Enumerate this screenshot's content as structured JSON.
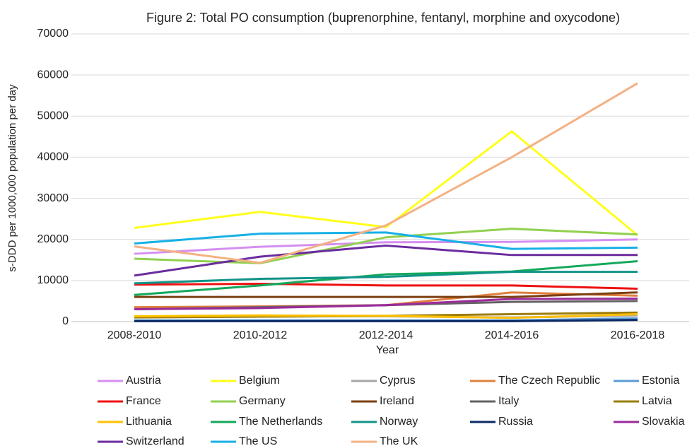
{
  "chart_data": {
    "type": "line",
    "title": "Figure 2: Total PO consumption (buprenorphine, fentanyl, morphine and oxycodone)",
    "x_label": "Year",
    "y_label": "s-DDD per 1000,000 population per day",
    "categories": [
      "2008-2010",
      "2010-2012",
      "2012-2014",
      "2014-2016",
      "2016-2018"
    ],
    "ylim": [
      0,
      70000
    ],
    "yticks": [
      0,
      10000,
      20000,
      30000,
      40000,
      50000,
      60000,
      70000
    ],
    "grid": true,
    "legend": "bottom",
    "series": [
      {
        "name": "Austria",
        "color": "#d58ff0",
        "values": [
          16500,
          18200,
          19300,
          19400,
          20000
        ]
      },
      {
        "name": "Belgium",
        "color": "#ffff1a",
        "values": [
          22800,
          26700,
          23000,
          46300,
          21000
        ]
      },
      {
        "name": "Cyprus",
        "color": "#a6a6a6",
        "values": [
          1200,
          1300,
          1300,
          1000,
          1500
        ]
      },
      {
        "name": "The Czech Republic",
        "color": "#e0813e",
        "values": [
          3500,
          3700,
          4000,
          7100,
          6300
        ]
      },
      {
        "name": "Estonia",
        "color": "#5b9bd5",
        "values": [
          300,
          300,
          300,
          300,
          800
        ]
      },
      {
        "name": "France",
        "color": "#ee1111",
        "values": [
          9000,
          9200,
          8800,
          8800,
          8000
        ]
      },
      {
        "name": "Germany",
        "color": "#92d050",
        "values": [
          15300,
          14200,
          20500,
          22600,
          21200
        ]
      },
      {
        "name": "Ireland",
        "color": "#7b3f12",
        "values": [
          6000,
          6000,
          6000,
          6000,
          7100
        ]
      },
      {
        "name": "Italy",
        "color": "#636363",
        "values": [
          3000,
          3500,
          4000,
          4800,
          5000
        ]
      },
      {
        "name": "Latvia",
        "color": "#9c7c0a",
        "values": [
          1000,
          1200,
          1400,
          1800,
          2200
        ]
      },
      {
        "name": "Lithuania",
        "color": "#ffc000",
        "values": [
          1300,
          1500,
          1400,
          900,
          1800
        ]
      },
      {
        "name": "The Netherlands",
        "color": "#13a85a",
        "values": [
          6500,
          8800,
          11500,
          12200,
          14700
        ]
      },
      {
        "name": "Norway",
        "color": "#119488",
        "values": [
          9300,
          10400,
          10900,
          12100,
          12100
        ]
      },
      {
        "name": "Russia",
        "color": "#0a2a66",
        "values": [
          100,
          100,
          100,
          100,
          400
        ]
      },
      {
        "name": "Slovakia",
        "color": "#9b2b9b",
        "values": [
          3000,
          3300,
          4000,
          5500,
          5600
        ]
      },
      {
        "name": "Switzerland",
        "color": "#6a2c9e",
        "values": [
          11200,
          15800,
          18500,
          16200,
          16200
        ]
      },
      {
        "name": "The US",
        "color": "#17b0e6",
        "values": [
          19000,
          21400,
          21700,
          17700,
          18000
        ]
      },
      {
        "name": "The UK",
        "color": "#f4b183",
        "values": [
          18300,
          14300,
          23400,
          40000,
          58000
        ]
      }
    ]
  }
}
